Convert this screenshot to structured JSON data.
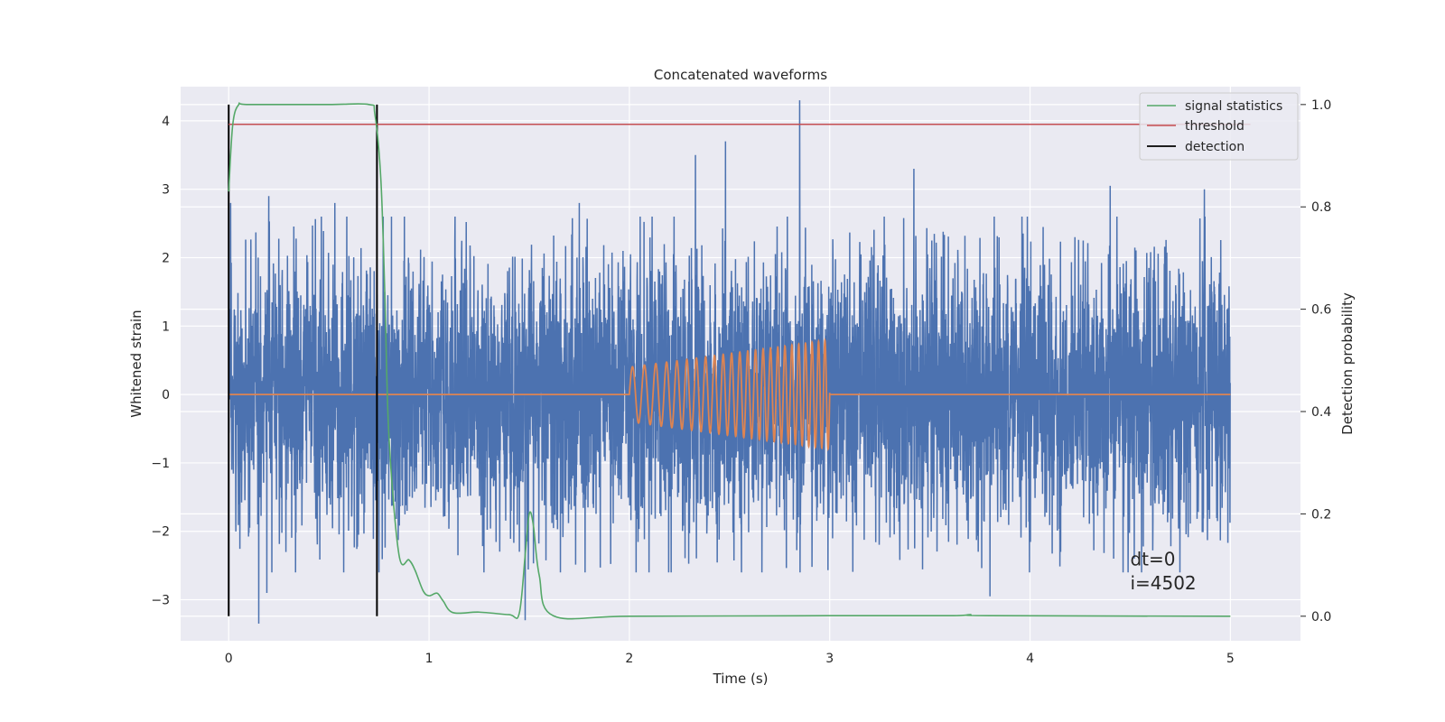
{
  "chart_data": {
    "type": "line",
    "title": "Concatenated waveforms",
    "xlabel": "Time (s)",
    "ylabel": "Whitened strain",
    "ylabel_right": "Detection probability",
    "xlim": [
      -0.24,
      5.35
    ],
    "ylim": [
      -3.6,
      4.5
    ],
    "ylim_right": [
      -0.048,
      1.035
    ],
    "x_ticks": [
      0,
      1,
      2,
      3,
      4,
      5
    ],
    "y_ticks": [
      -3,
      -2,
      -1,
      0,
      1,
      2,
      3,
      4
    ],
    "y_ticks_right": [
      0.0,
      0.2,
      0.4,
      0.6,
      0.8,
      1.0
    ],
    "x_tick_labels": [
      "0",
      "1",
      "2",
      "3",
      "4",
      "5"
    ],
    "y_tick_labels": [
      "−3",
      "−2",
      "−1",
      "0",
      "1",
      "2",
      "3",
      "4"
    ],
    "y_tick_labels_right": [
      "0.0",
      "0.2",
      "0.4",
      "0.6",
      "0.8",
      "1.0"
    ],
    "grid": true,
    "legend_position": "top-right",
    "colors": {
      "noise": "#4c72b0",
      "signal": "#dd8452",
      "statistics": "#55a868",
      "threshold": "#c44e52",
      "detection": "#000000",
      "background": "#eaeaf2",
      "grid": "#ffffff"
    },
    "series": [
      {
        "key": "strain_noise",
        "axis": "left",
        "x_range": [
          0,
          5
        ],
        "typical_amplitude": 1.0,
        "peaks": [
          {
            "x": 0.01,
            "y": 2.8
          },
          {
            "x": 0.2,
            "y": 2.9
          },
          {
            "x": 0.53,
            "y": 2.8
          },
          {
            "x": 1.75,
            "y": 2.8
          },
          {
            "x": 2.33,
            "y": 3.5
          },
          {
            "x": 2.48,
            "y": 3.7
          },
          {
            "x": 2.85,
            "y": 4.3
          },
          {
            "x": 3.42,
            "y": 3.3
          },
          {
            "x": 4.4,
            "y": 3.05
          },
          {
            "x": 4.87,
            "y": 3.0
          }
        ],
        "troughs": [
          {
            "x": 0.15,
            "y": -3.35
          },
          {
            "x": 0.19,
            "y": -2.9
          },
          {
            "x": 1.48,
            "y": -3.3
          },
          {
            "x": 3.8,
            "y": -2.95
          },
          {
            "x": 4.52,
            "y": -2.4
          }
        ]
      },
      {
        "key": "injected_signal",
        "axis": "left",
        "x": [
          2.0,
          3.0
        ],
        "frequency_hz": [
          16,
          32
        ],
        "amplitude": [
          0.4,
          0.8
        ],
        "baseline": 0
      },
      {
        "name": "signal statistics",
        "axis": "right",
        "x": [
          0,
          0.02,
          0.05,
          0.1,
          0.5,
          0.7,
          0.73,
          0.76,
          0.78,
          0.8,
          0.85,
          0.9,
          0.93,
          0.97,
          1.0,
          1.04,
          1.07,
          1.12,
          1.25,
          1.4,
          1.45,
          1.48,
          1.5,
          1.52,
          1.55,
          1.62,
          2.0,
          3.0,
          3.6,
          3.7,
          3.8,
          5.0
        ],
        "y": [
          0.83,
          0.96,
          1.0,
          1.0,
          1.0,
          1.0,
          0.98,
          0.85,
          0.62,
          0.35,
          0.12,
          0.11,
          0.09,
          0.05,
          0.04,
          0.045,
          0.03,
          0.007,
          0.008,
          0.003,
          0.005,
          0.12,
          0.2,
          0.18,
          0.08,
          0.001,
          0.0,
          0.001,
          0.001,
          0.003,
          0.001,
          0.0
        ]
      },
      {
        "name": "threshold",
        "axis": "left",
        "x": [
          0,
          5.1
        ],
        "y": [
          3.95,
          3.95
        ]
      },
      {
        "name": "detection",
        "axis": "right",
        "x": [
          0.0,
          0.74
        ],
        "y_span": [
          0,
          1
        ]
      }
    ],
    "annotations": [
      {
        "text": "dt=0",
        "x": 4.5,
        "y": -2.5
      },
      {
        "text": "i=4502",
        "x": 4.5,
        "y": -2.85
      }
    ]
  }
}
